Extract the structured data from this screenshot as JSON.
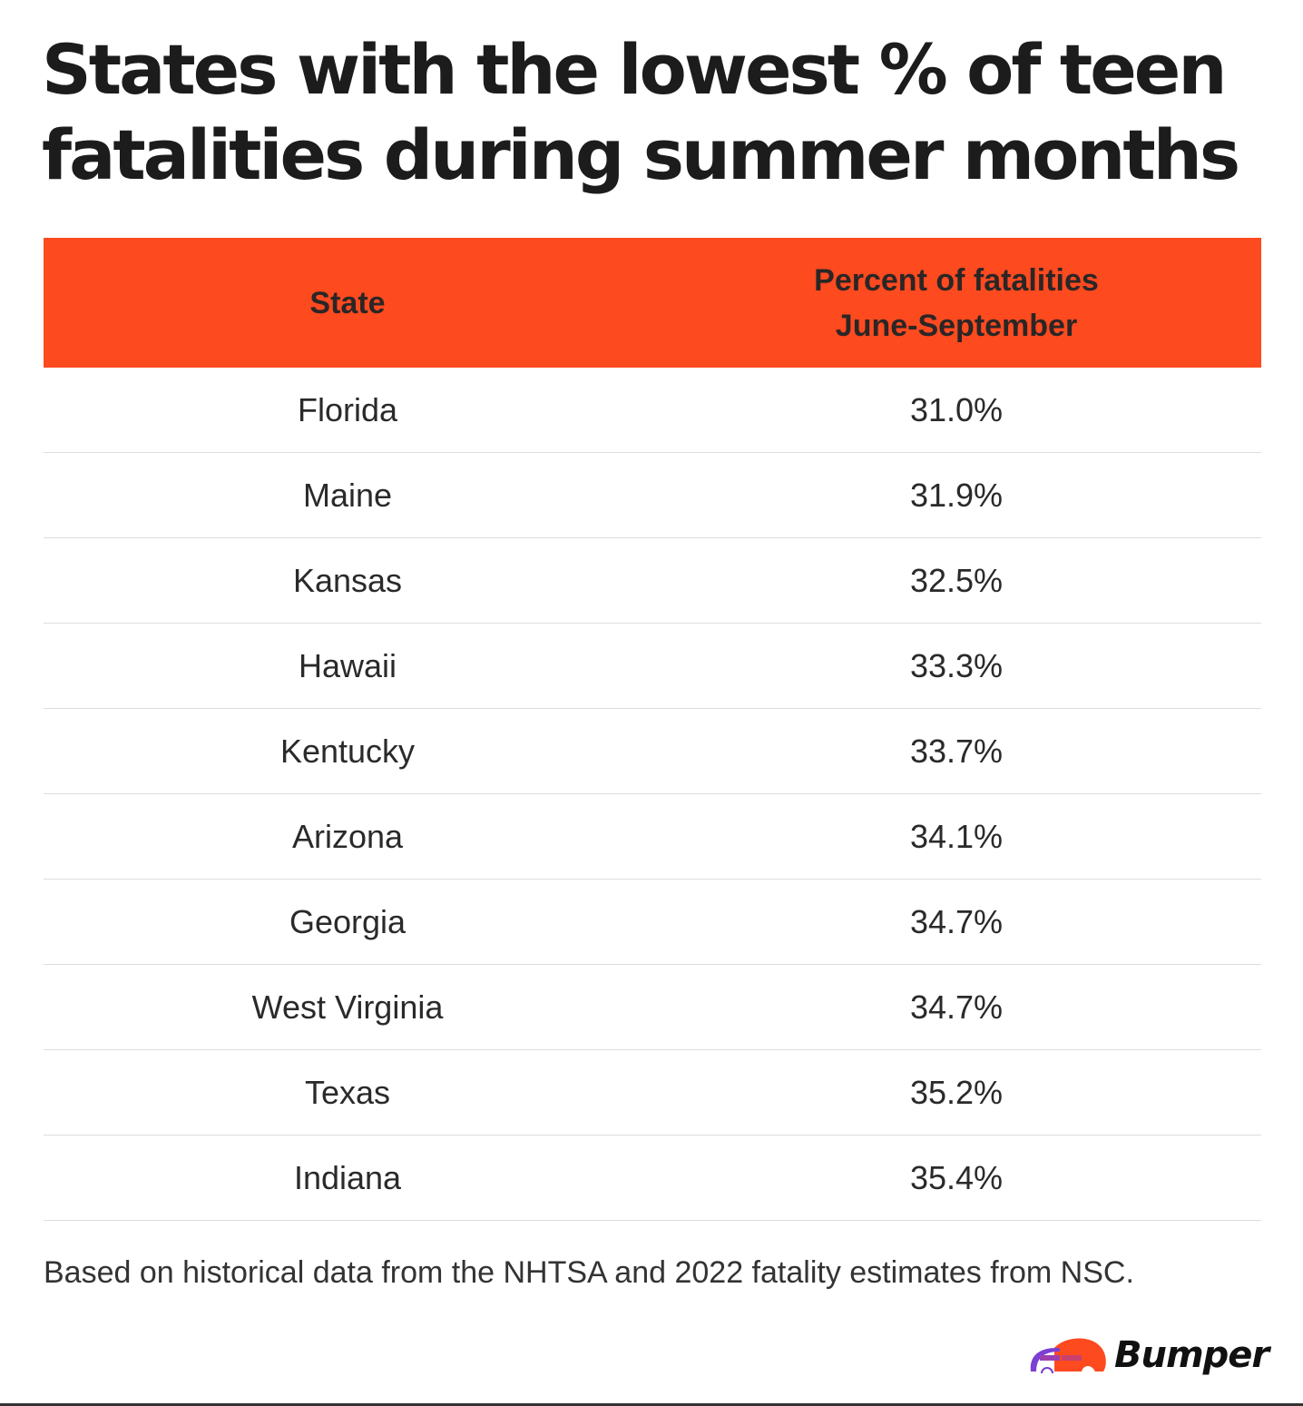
{
  "title": "States with the lowest % of teen fatalities during summer months",
  "table": {
    "headers": [
      "State",
      "Percent of fatalities June-September"
    ],
    "rows": [
      {
        "state": "Florida",
        "percent": "31.0%"
      },
      {
        "state": "Maine",
        "percent": "31.9%"
      },
      {
        "state": "Kansas",
        "percent": "32.5%"
      },
      {
        "state": "Hawaii",
        "percent": "33.3%"
      },
      {
        "state": "Kentucky",
        "percent": "33.7%"
      },
      {
        "state": "Arizona",
        "percent": "34.1%"
      },
      {
        "state": "Georgia",
        "percent": "34.7%"
      },
      {
        "state": "West Virginia",
        "percent": "34.7%"
      },
      {
        "state": "Texas",
        "percent": "35.2%"
      },
      {
        "state": "Indiana",
        "percent": "35.4%"
      }
    ]
  },
  "footnote": "Based on historical data from the NHTSA and 2022 fatality estimates from NSC.",
  "brand": {
    "name": "Bumper",
    "accent": "#fd4a1f",
    "purple": "#7b3fd4"
  }
}
